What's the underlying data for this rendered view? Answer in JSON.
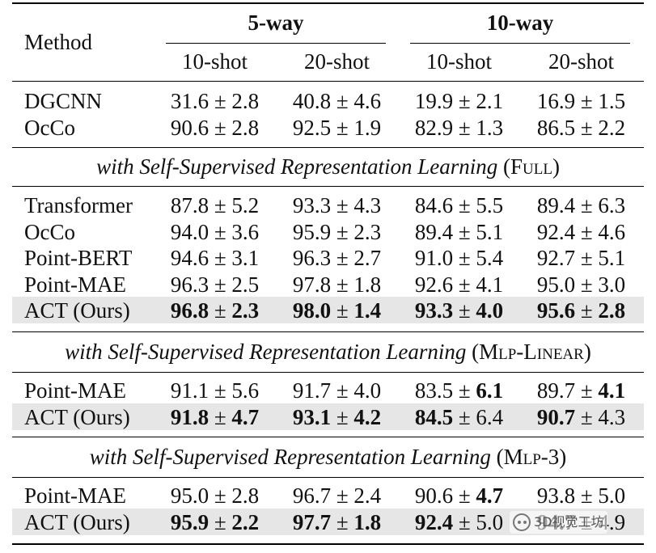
{
  "header": {
    "method": "Method",
    "group_5way": "5-way",
    "group_10way": "10-way",
    "sub": [
      "10-shot",
      "20-shot",
      "10-shot",
      "20-shot"
    ]
  },
  "blocks": [
    {
      "rows": [
        {
          "method": "DGCNN",
          "values": [
            {
              "m": "31.6",
              "s": "2.8"
            },
            {
              "m": "40.8",
              "s": "4.6"
            },
            {
              "m": "19.9",
              "s": "2.1"
            },
            {
              "m": "16.9",
              "s": "1.5"
            }
          ]
        },
        {
          "method": "OcCo",
          "values": [
            {
              "m": "90.6",
              "s": "2.8"
            },
            {
              "m": "92.5",
              "s": "1.9"
            },
            {
              "m": "82.9",
              "s": "1.3"
            },
            {
              "m": "86.5",
              "s": "2.2"
            }
          ]
        }
      ]
    },
    {
      "section_italic": "with Self-Supervised Representation Learning",
      "section_tag": "(Full)",
      "rows": [
        {
          "method": "Transformer",
          "values": [
            {
              "m": "87.8",
              "s": "5.2"
            },
            {
              "m": "93.3",
              "s": "4.3"
            },
            {
              "m": "84.6",
              "s": "5.5"
            },
            {
              "m": "89.4",
              "s": "6.3"
            }
          ]
        },
        {
          "method": "OcCo",
          "values": [
            {
              "m": "94.0",
              "s": "3.6"
            },
            {
              "m": "95.9",
              "s": "2.3"
            },
            {
              "m": "89.4",
              "s": "5.1"
            },
            {
              "m": "92.4",
              "s": "4.6"
            }
          ]
        },
        {
          "method": "Point-BERT",
          "values": [
            {
              "m": "94.6",
              "s": "3.1"
            },
            {
              "m": "96.3",
              "s": "2.7"
            },
            {
              "m": "91.0",
              "s": "5.4"
            },
            {
              "m": "92.7",
              "s": "5.1"
            }
          ]
        },
        {
          "method": "Point-MAE",
          "values": [
            {
              "m": "96.3",
              "s": "2.5"
            },
            {
              "m": "97.8",
              "s": "1.8"
            },
            {
              "m": "92.6",
              "s": "4.1"
            },
            {
              "m": "95.0",
              "s": "3.0"
            }
          ]
        },
        {
          "method": "ACT (Ours)",
          "highlight": true,
          "values": [
            {
              "m": "96.8",
              "s": "2.3",
              "bm": true,
              "bs": true
            },
            {
              "m": "98.0",
              "s": "1.4",
              "bm": true,
              "bs": true
            },
            {
              "m": "93.3",
              "s": "4.0",
              "bm": true,
              "bs": true
            },
            {
              "m": "95.6",
              "s": "2.8",
              "bm": true,
              "bs": true
            }
          ]
        }
      ]
    },
    {
      "section_italic": "with Self-Supervised Representation Learning",
      "section_tag": "(Mlp-Linear)",
      "rows": [
        {
          "method": "Point-MAE",
          "values": [
            {
              "m": "91.1",
              "s": "5.6"
            },
            {
              "m": "91.7",
              "s": "4.0"
            },
            {
              "m": "83.5",
              "s": "6.1",
              "bs": true
            },
            {
              "m": "89.7",
              "s": "4.1",
              "bs": true
            }
          ]
        },
        {
          "method": "ACT (Ours)",
          "highlight": true,
          "values": [
            {
              "m": "91.8",
              "s": "4.7",
              "bm": true,
              "bs": true
            },
            {
              "m": "93.1",
              "s": "4.2",
              "bm": true,
              "bs": true
            },
            {
              "m": "84.5",
              "s": "6.4",
              "bm": true
            },
            {
              "m": "90.7",
              "s": "4.3",
              "bm": true
            }
          ]
        }
      ]
    },
    {
      "section_italic": "with Self-Supervised Representation Learning",
      "section_tag": "(Mlp-3)",
      "rows": [
        {
          "method": "Point-MAE",
          "values": [
            {
              "m": "95.0",
              "s": "2.8"
            },
            {
              "m": "96.7",
              "s": "2.4"
            },
            {
              "m": "90.6",
              "s": "4.7",
              "bs": true
            },
            {
              "m": "93.8",
              "s": "5.0"
            }
          ]
        },
        {
          "method": "ACT (Ours)",
          "highlight": true,
          "values": [
            {
              "m": "95.9",
              "s": "2.2",
              "bm": true,
              "bs": true
            },
            {
              "m": "97.7",
              "s": "1.8",
              "bm": true,
              "bs": true
            },
            {
              "m": "92.4",
              "s": "5.0",
              "bm": true
            },
            {
              "m": "94.7",
              "s": "4.9",
              "bm": true
            }
          ]
        }
      ]
    }
  ],
  "pm_symbol": "±",
  "watermark": {
    "text": "3D视觉工坊",
    "icon": "wechat-icon"
  }
}
